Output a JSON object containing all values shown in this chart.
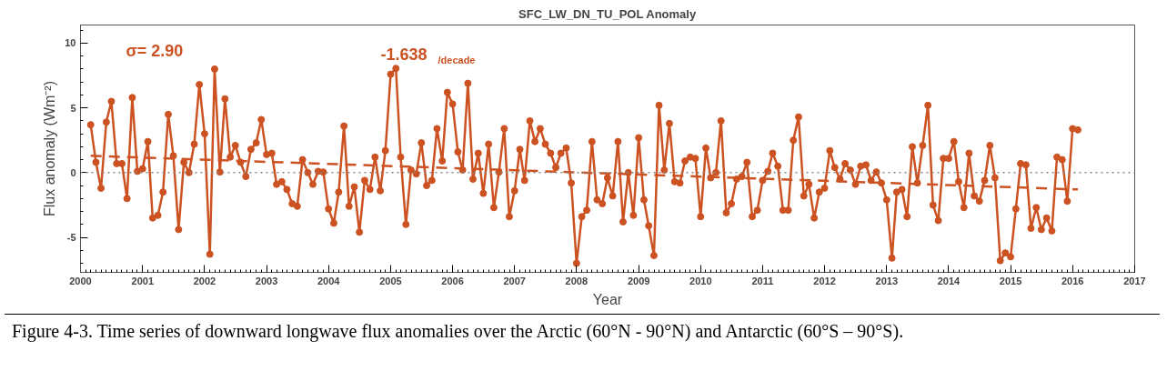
{
  "chart_data": {
    "type": "line",
    "title": "SFC_LW_DN_TU_POL Anomaly",
    "xlabel": "Year",
    "ylabel": "Flux anomaly (Wm⁻²)",
    "annotations": [
      "σ=  2.90",
      "-1.638 $_{/decade}$",
      "Figure 4-3.  Time series of downward longwave flux anomalies over the Arctic (60°N - 90°N) and Antarctic (60°S – 90°S)."
    ],
    "xlim": [
      "2000",
      "2017"
    ],
    "xticks": [
      "2000",
      "2001",
      "2002",
      "2003",
      "2004",
      "2005",
      "2006",
      "2007",
      "2008",
      "2009",
      "2010",
      "2011",
      "2012",
      "2013",
      "2014",
      "2015",
      "2016",
      "2017"
    ],
    "ylim": [
      -7.7,
      11.4
    ],
    "yticks": [
      -5,
      0,
      5,
      10
    ],
    "grid": false,
    "ref_lines": [
      {
        "axis": "y",
        "value": 0,
        "color": "#888888",
        "line_style": "dotted"
      }
    ],
    "series": [
      {
        "color": "#cc5222",
        "marker": "circle",
        "line_style": "solid",
        "x": [
          "2000-03",
          "2000-04",
          "2000-05",
          "2000-06",
          "2000-07",
          "2000-08",
          "2000-09",
          "2000-10",
          "2000-11",
          "2000-12",
          "2001-01",
          "2001-02",
          "2001-03",
          "2001-04",
          "2001-05",
          "2001-06",
          "2001-07",
          "2001-08",
          "2001-09",
          "2001-10",
          "2001-11",
          "2001-12",
          "2002-01",
          "2002-02",
          "2002-03",
          "2002-04",
          "2002-05",
          "2002-06",
          "2002-07",
          "2002-08",
          "2002-09",
          "2002-10",
          "2002-11",
          "2002-12",
          "2003-01",
          "2003-02",
          "2003-03",
          "2003-04",
          "2003-05",
          "2003-06",
          "2003-07",
          "2003-08",
          "2003-09",
          "2003-10",
          "2003-11",
          "2003-12",
          "2004-01",
          "2004-02",
          "2004-03",
          "2004-04",
          "2004-05",
          "2004-06",
          "2004-07",
          "2004-08",
          "2004-09",
          "2004-10",
          "2004-11",
          "2004-12",
          "2005-01",
          "2005-02",
          "2005-03",
          "2005-04",
          "2005-05",
          "2005-06",
          "2005-07",
          "2005-08",
          "2005-09",
          "2005-10",
          "2005-11",
          "2005-12",
          "2006-01",
          "2006-02",
          "2006-03",
          "2006-04",
          "2006-05",
          "2006-06",
          "2006-07",
          "2006-08",
          "2006-09",
          "2006-10",
          "2006-11",
          "2006-12",
          "2007-01",
          "2007-02",
          "2007-03",
          "2007-04",
          "2007-05",
          "2007-06",
          "2007-07",
          "2007-08",
          "2007-09",
          "2007-10",
          "2007-11",
          "2007-12",
          "2008-01",
          "2008-02",
          "2008-03",
          "2008-04",
          "2008-05",
          "2008-06",
          "2008-07",
          "2008-08",
          "2008-09",
          "2008-10",
          "2008-11",
          "2008-12",
          "2009-01",
          "2009-02",
          "2009-03",
          "2009-04",
          "2009-05",
          "2009-06",
          "2009-07",
          "2009-08",
          "2009-09",
          "2009-10",
          "2009-11",
          "2009-12",
          "2010-01",
          "2010-02",
          "2010-03",
          "2010-04",
          "2010-05",
          "2010-06",
          "2010-07",
          "2010-08",
          "2010-09",
          "2010-10",
          "2010-11",
          "2010-12",
          "2011-01",
          "2011-02",
          "2011-03",
          "2011-04",
          "2011-05",
          "2011-06",
          "2011-07",
          "2011-08",
          "2011-09",
          "2011-10",
          "2011-11",
          "2011-12",
          "2012-01",
          "2012-02",
          "2012-03",
          "2012-04",
          "2012-05",
          "2012-06",
          "2012-07",
          "2012-08",
          "2012-09",
          "2012-10",
          "2012-11",
          "2012-12",
          "2013-01",
          "2013-02",
          "2013-03",
          "2013-04",
          "2013-05",
          "2013-06",
          "2013-07",
          "2013-08",
          "2013-09",
          "2013-10",
          "2013-11",
          "2013-12",
          "2014-01",
          "2014-02",
          "2014-03",
          "2014-04",
          "2014-05",
          "2014-06",
          "2014-07",
          "2014-08",
          "2014-09",
          "2014-10",
          "2014-11",
          "2014-12",
          "2015-01",
          "2015-02",
          "2015-03",
          "2015-04",
          "2015-05",
          "2015-06",
          "2015-07",
          "2015-08",
          "2015-09",
          "2015-10",
          "2015-11",
          "2015-12",
          "2016-01",
          "2016-02"
        ],
        "values": [
          3.7,
          0.8,
          -1.2,
          3.9,
          5.5,
          0.7,
          0.7,
          -2.0,
          5.8,
          0.1,
          0.3,
          2.4,
          -3.5,
          -3.3,
          -1.5,
          4.5,
          1.3,
          -4.4,
          0.8,
          0.0,
          2.2,
          6.8,
          3.0,
          -6.3,
          8.0,
          0.05,
          5.7,
          1.2,
          2.1,
          0.8,
          -0.3,
          1.8,
          2.3,
          4.1,
          1.4,
          1.5,
          -0.9,
          -0.7,
          -1.3,
          -2.4,
          -2.6,
          1.0,
          0.0,
          -0.9,
          0.1,
          0.05,
          -2.8,
          -3.9,
          -1.5,
          3.6,
          -2.6,
          -1.1,
          -4.6,
          -0.6,
          -1.3,
          1.2,
          -1.4,
          1.7,
          7.6,
          8.05,
          1.2,
          -4.0,
          0.2,
          -0.1,
          2.3,
          -1.0,
          -0.6,
          3.4,
          0.9,
          6.2,
          5.3,
          1.6,
          0.2,
          6.9,
          -0.5,
          1.5,
          -1.6,
          2.2,
          -2.7,
          0.05,
          3.4,
          -3.4,
          -1.4,
          1.8,
          -0.6,
          4.0,
          2.4,
          3.4,
          2.2,
          1.5,
          0.4,
          1.5,
          1.9,
          -0.8,
          -7.0,
          -3.4,
          -2.9,
          2.4,
          -2.1,
          -2.4,
          -0.4,
          -1.8,
          2.4,
          -3.8,
          0.0,
          -3.3,
          2.7,
          -2.1,
          -4.1,
          -6.4,
          5.2,
          0.2,
          3.8,
          -0.7,
          -0.8,
          0.9,
          1.2,
          1.1,
          -3.4,
          1.9,
          -0.4,
          0.0,
          4.0,
          -3.1,
          -2.4,
          -0.5,
          -0.3,
          0.8,
          -3.4,
          -2.9,
          -0.6,
          0.1,
          1.5,
          0.5,
          -2.9,
          -2.9,
          2.5,
          4.3,
          -1.8,
          -0.9,
          -3.5,
          -1.5,
          -1.2,
          1.7,
          0.4,
          -0.5,
          0.7,
          0.2,
          -0.9,
          0.5,
          0.6,
          -0.6,
          0.05,
          -0.8,
          -2.1,
          -6.6,
          -1.5,
          -1.3,
          -3.4,
          2.0,
          -0.8,
          2.1,
          5.2,
          -2.5,
          -3.7,
          1.1,
          1.1,
          2.4,
          -0.7,
          -2.7,
          1.5,
          -1.8,
          -2.2,
          -0.6,
          2.1,
          -0.4,
          -6.8,
          -6.2,
          -6.5,
          -2.8,
          0.7,
          0.6,
          -4.3,
          -2.7,
          -4.4,
          -3.5,
          -4.5,
          1.2,
          1.0,
          -2.2,
          3.4,
          3.3
        ]
      },
      {
        "type": "line",
        "color": "#cc5222",
        "marker": "none",
        "line_style": "dashed",
        "x": [
          "2000-03",
          "2016-02"
        ],
        "values": [
          1.3,
          -1.3
        ]
      }
    ]
  }
}
